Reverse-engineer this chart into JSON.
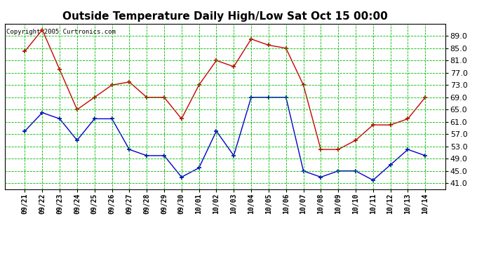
{
  "title": "Outside Temperature Daily High/Low Sat Oct 15 00:00",
  "copyright": "Copyright 2005 Curtronics.com",
  "labels": [
    "09/21",
    "09/22",
    "09/23",
    "09/24",
    "09/25",
    "09/26",
    "09/27",
    "09/28",
    "09/29",
    "09/30",
    "10/01",
    "10/02",
    "10/03",
    "10/04",
    "10/05",
    "10/06",
    "10/07",
    "10/08",
    "10/09",
    "10/10",
    "10/11",
    "10/12",
    "10/13",
    "10/14"
  ],
  "high": [
    84.0,
    91.0,
    78.0,
    65.0,
    69.0,
    73.0,
    74.0,
    69.0,
    69.0,
    62.0,
    73.0,
    81.0,
    79.0,
    88.0,
    86.0,
    85.0,
    73.0,
    52.0,
    52.0,
    55.0,
    60.0,
    60.0,
    62.0,
    69.0
  ],
  "low": [
    58.0,
    64.0,
    62.0,
    55.0,
    62.0,
    62.0,
    52.0,
    50.0,
    50.0,
    43.0,
    46.0,
    58.0,
    50.0,
    69.0,
    69.0,
    69.0,
    45.0,
    43.0,
    45.0,
    45.0,
    42.0,
    47.0,
    52.0,
    50.0
  ],
  "high_color": "#cc0000",
  "low_color": "#0000cc",
  "bg_color": "#ffffff",
  "plot_bg_color": "#ffffff",
  "grid_color": "#00bb00",
  "title_color": "#000000",
  "yticks": [
    41.0,
    45.0,
    49.0,
    53.0,
    57.0,
    61.0,
    65.0,
    69.0,
    73.0,
    77.0,
    81.0,
    85.0,
    89.0
  ],
  "ylim_min": 39.0,
  "ylim_max": 93.0,
  "title_fontsize": 11,
  "xlabel_fontsize": 7,
  "ylabel_fontsize": 8
}
